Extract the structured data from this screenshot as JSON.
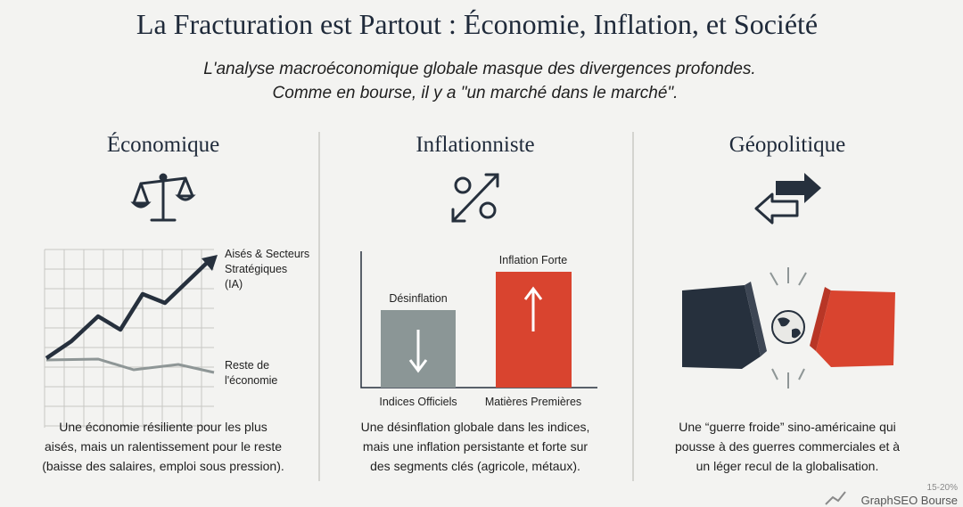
{
  "header": {
    "title": "La Fracturation est Partout : Économie, Inflation, et Société",
    "subtitle": [
      "L'analyse macroéconomique globale masque des divergences profondes.",
      "Comme en bourse, il y a \"un marché dans le marché\"."
    ]
  },
  "columns": [
    {
      "heading": "Économique",
      "top_label": [
        "Aisés & Secteurs",
        "Stratégiques",
        "(IA)"
      ],
      "bottom_label": [
        "Reste de",
        "l'économie"
      ],
      "description": [
        "Une économie résiliente pour les plus",
        "aisés, mais un ralentissement pour le reste",
        "(baisse des salaires, emploi sous pression)."
      ]
    },
    {
      "heading": "Inflationniste",
      "bar_labels": [
        "Désinflation",
        "Inflation Forte"
      ],
      "x_labels": [
        "Indices Officiels",
        "Matières Premières"
      ],
      "description": [
        "Une désinflation globale dans les indices,",
        "mais une inflation persistante et forte sur",
        "des segments clés (agricole, métaux)."
      ]
    },
    {
      "heading": "Géopolitique",
      "description": [
        "Une “guerre froide” sino-américaine qui",
        "pousse à des guerres commerciales et à",
        "un léger recul de la globalisation."
      ]
    }
  ],
  "footer": {
    "badge": "15-20%",
    "brand": "GraphSEO Bourse"
  }
}
